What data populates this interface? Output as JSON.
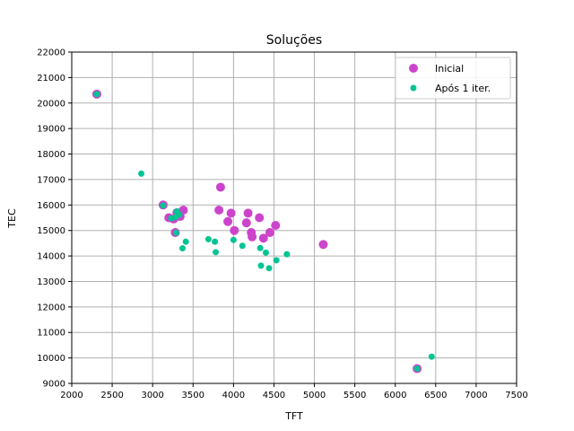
{
  "chart_data": {
    "type": "scatter",
    "title": "Soluções",
    "xlabel": "TFT",
    "ylabel": "TEC",
    "xlim": [
      2000,
      7500
    ],
    "ylim": [
      9000,
      22000
    ],
    "xticks": [
      2000,
      2500,
      3000,
      3500,
      4000,
      4500,
      5000,
      5500,
      6000,
      6500,
      7000,
      7500
    ],
    "yticks": [
      9000,
      10000,
      11000,
      12000,
      13000,
      14000,
      15000,
      16000,
      17000,
      18000,
      19000,
      20000,
      21000,
      22000
    ],
    "grid": true,
    "legend": "top-right",
    "series": [
      {
        "name": "Inicial",
        "color": "#cc44cc",
        "marker_size": "large",
        "points": [
          [
            2310,
            20350
          ],
          [
            3130,
            16000
          ],
          [
            3200,
            15500
          ],
          [
            3260,
            15450
          ],
          [
            3280,
            14920
          ],
          [
            3300,
            15700
          ],
          [
            3340,
            15550
          ],
          [
            3380,
            15800
          ],
          [
            3820,
            15800
          ],
          [
            3840,
            16700
          ],
          [
            3930,
            15350
          ],
          [
            3970,
            15680
          ],
          [
            4010,
            15000
          ],
          [
            4160,
            15300
          ],
          [
            4180,
            15680
          ],
          [
            4220,
            14920
          ],
          [
            4230,
            14750
          ],
          [
            4320,
            15500
          ],
          [
            4370,
            14700
          ],
          [
            4450,
            14920
          ],
          [
            4520,
            15200
          ],
          [
            5110,
            14450
          ],
          [
            6270,
            9580
          ]
        ]
      },
      {
        "name": "Após 1 iter.",
        "color": "#00c493",
        "marker_size": "small",
        "points": [
          [
            2310,
            20350
          ],
          [
            2860,
            17230
          ],
          [
            3130,
            15980
          ],
          [
            3230,
            15480
          ],
          [
            3280,
            15520
          ],
          [
            3290,
            14910
          ],
          [
            3300,
            15750
          ],
          [
            3330,
            15620
          ],
          [
            3370,
            14300
          ],
          [
            3410,
            14560
          ],
          [
            3690,
            14660
          ],
          [
            3770,
            14560
          ],
          [
            3780,
            14150
          ],
          [
            4000,
            14630
          ],
          [
            4110,
            14400
          ],
          [
            4330,
            14310
          ],
          [
            4340,
            13620
          ],
          [
            4400,
            14130
          ],
          [
            4440,
            13520
          ],
          [
            4530,
            13830
          ],
          [
            4660,
            14070
          ],
          [
            6270,
            9580
          ],
          [
            6450,
            10050
          ]
        ]
      }
    ]
  }
}
